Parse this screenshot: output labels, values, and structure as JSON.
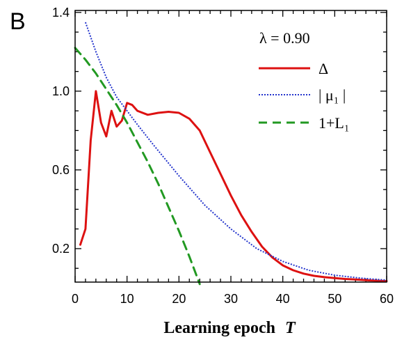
{
  "panel_label": "B",
  "chart_data": {
    "type": "line",
    "xlabel": "Learning epoch",
    "xlabel_var": "T",
    "ylabel": "",
    "xlim": [
      0,
      60
    ],
    "ylim": [
      0.03,
      1.41
    ],
    "x_ticks": [
      0,
      10,
      20,
      30,
      40,
      50,
      60
    ],
    "y_ticks": [
      0.2,
      0.6,
      1.0,
      1.4
    ],
    "y_tick_labels": [
      "0.2",
      "0.6",
      "1.0",
      "1.4"
    ],
    "grid": false,
    "legend_position": "top-right",
    "legend_title": "λ = 0.90",
    "series": [
      {
        "name": "Δ",
        "color": "#dd1111",
        "style": "solid",
        "x": [
          1,
          2,
          3,
          4,
          5,
          6,
          7,
          8,
          9,
          10,
          11,
          12,
          14,
          16,
          18,
          20,
          22,
          24,
          26,
          28,
          30,
          32,
          34,
          36,
          38,
          40,
          42,
          44,
          46,
          48,
          50,
          52,
          54,
          56,
          58,
          60
        ],
        "y": [
          0.22,
          0.3,
          0.75,
          1.0,
          0.84,
          0.77,
          0.9,
          0.82,
          0.85,
          0.94,
          0.93,
          0.9,
          0.88,
          0.89,
          0.895,
          0.89,
          0.86,
          0.8,
          0.69,
          0.58,
          0.47,
          0.37,
          0.285,
          0.21,
          0.155,
          0.115,
          0.09,
          0.073,
          0.062,
          0.055,
          0.05,
          0.046,
          0.043,
          0.04,
          0.037,
          0.035
        ]
      },
      {
        "name": "| μ₁ |",
        "color": "#2233cc",
        "style": "dotted",
        "x": [
          2,
          4,
          6,
          8,
          10,
          12,
          15,
          20,
          25,
          30,
          35,
          40,
          45,
          50,
          55,
          60
        ],
        "y": [
          1.35,
          1.2,
          1.07,
          0.97,
          0.9,
          0.83,
          0.73,
          0.57,
          0.42,
          0.3,
          0.2,
          0.135,
          0.09,
          0.065,
          0.05,
          0.04
        ]
      },
      {
        "name": "1+L₁",
        "color": "#229922",
        "style": "dashed",
        "x": [
          0,
          2,
          4,
          6,
          8,
          10,
          12,
          14,
          16,
          18,
          20,
          22,
          24
        ],
        "y": [
          1.22,
          1.16,
          1.09,
          1.01,
          0.93,
          0.84,
          0.74,
          0.64,
          0.53,
          0.41,
          0.29,
          0.16,
          0.02
        ]
      }
    ]
  }
}
